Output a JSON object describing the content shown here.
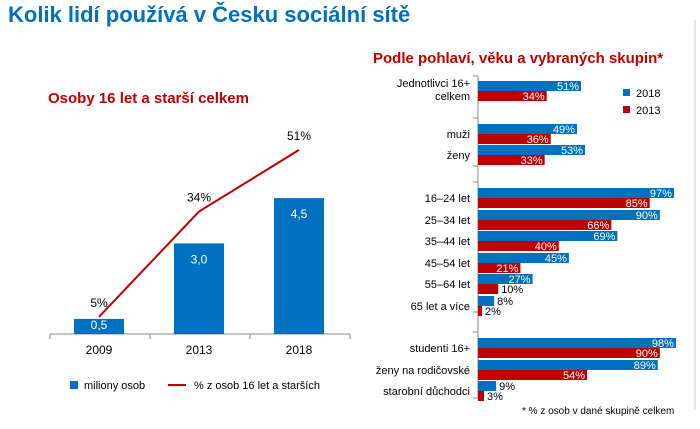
{
  "title": "Kolik lidí používá v Česku sociální sítě",
  "chart_data": [
    {
      "type": "bar+line",
      "title": "Osoby 16 let a starší celkem",
      "categories": [
        "2009",
        "2013",
        "2018"
      ],
      "series": [
        {
          "name": "miliony osob",
          "type": "bar",
          "values": [
            0.5,
            3.0,
            4.5
          ],
          "labels": [
            "0,5",
            "3,0",
            "4,5"
          ],
          "color": "#0070c0"
        },
        {
          "name": "% z osob 16 let a starších",
          "type": "line",
          "values": [
            5,
            34,
            51
          ],
          "labels": [
            "5%",
            "34%",
            "51%"
          ],
          "color": "#c00000"
        }
      ],
      "legend": "bottom"
    },
    {
      "type": "bar",
      "orientation": "horizontal",
      "title": "Podle pohlaví, věku a vybraných skupin*",
      "categories": [
        "Jednotlivci 16+ celkem",
        "muži",
        "ženy",
        "16–24 let",
        "25–34 let",
        "35–44 let",
        "45–54 let",
        "55–64 let",
        "65 let a více",
        "studenti 16+",
        "ženy na rodičovské",
        "starobní důchodci"
      ],
      "series": [
        {
          "name": "2018",
          "values": [
            51,
            49,
            53,
            97,
            90,
            69,
            45,
            27,
            8,
            98,
            89,
            9
          ],
          "color": "#0070c0"
        },
        {
          "name": "2013",
          "values": [
            34,
            36,
            33,
            85,
            66,
            40,
            21,
            10,
            2,
            90,
            54,
            3
          ],
          "color": "#c00000"
        }
      ],
      "legend": "top-right",
      "footnote": "* % z osob v dané skupině celkem"
    }
  ]
}
